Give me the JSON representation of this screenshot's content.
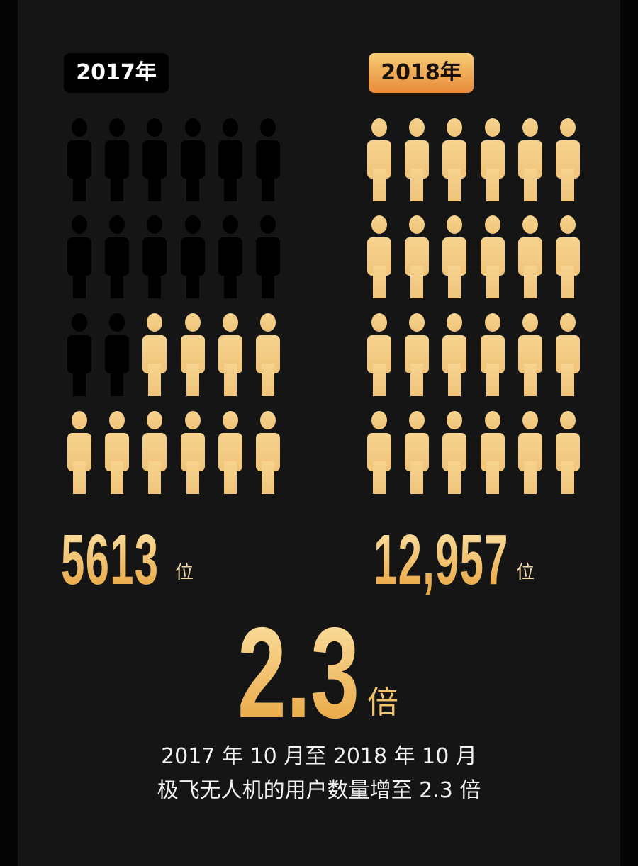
{
  "left": {
    "year_label": "2017年",
    "count": "5613",
    "unit": "位",
    "icons_total": 24,
    "icons_highlighted": 10
  },
  "right": {
    "year_label": "2018年",
    "count": "12,957",
    "unit": "位",
    "icons_total": 24,
    "icons_highlighted": 24
  },
  "ratio": {
    "value": "2.3",
    "unit": "倍"
  },
  "caption": {
    "line1": "2017 年 10 月至 2018 年 10 月",
    "line2": "极飞无人机的用户数量增至 2.3 倍"
  },
  "colors": {
    "gold": "#f0c47a",
    "dark_icon": "#000000",
    "background": "#151515"
  }
}
